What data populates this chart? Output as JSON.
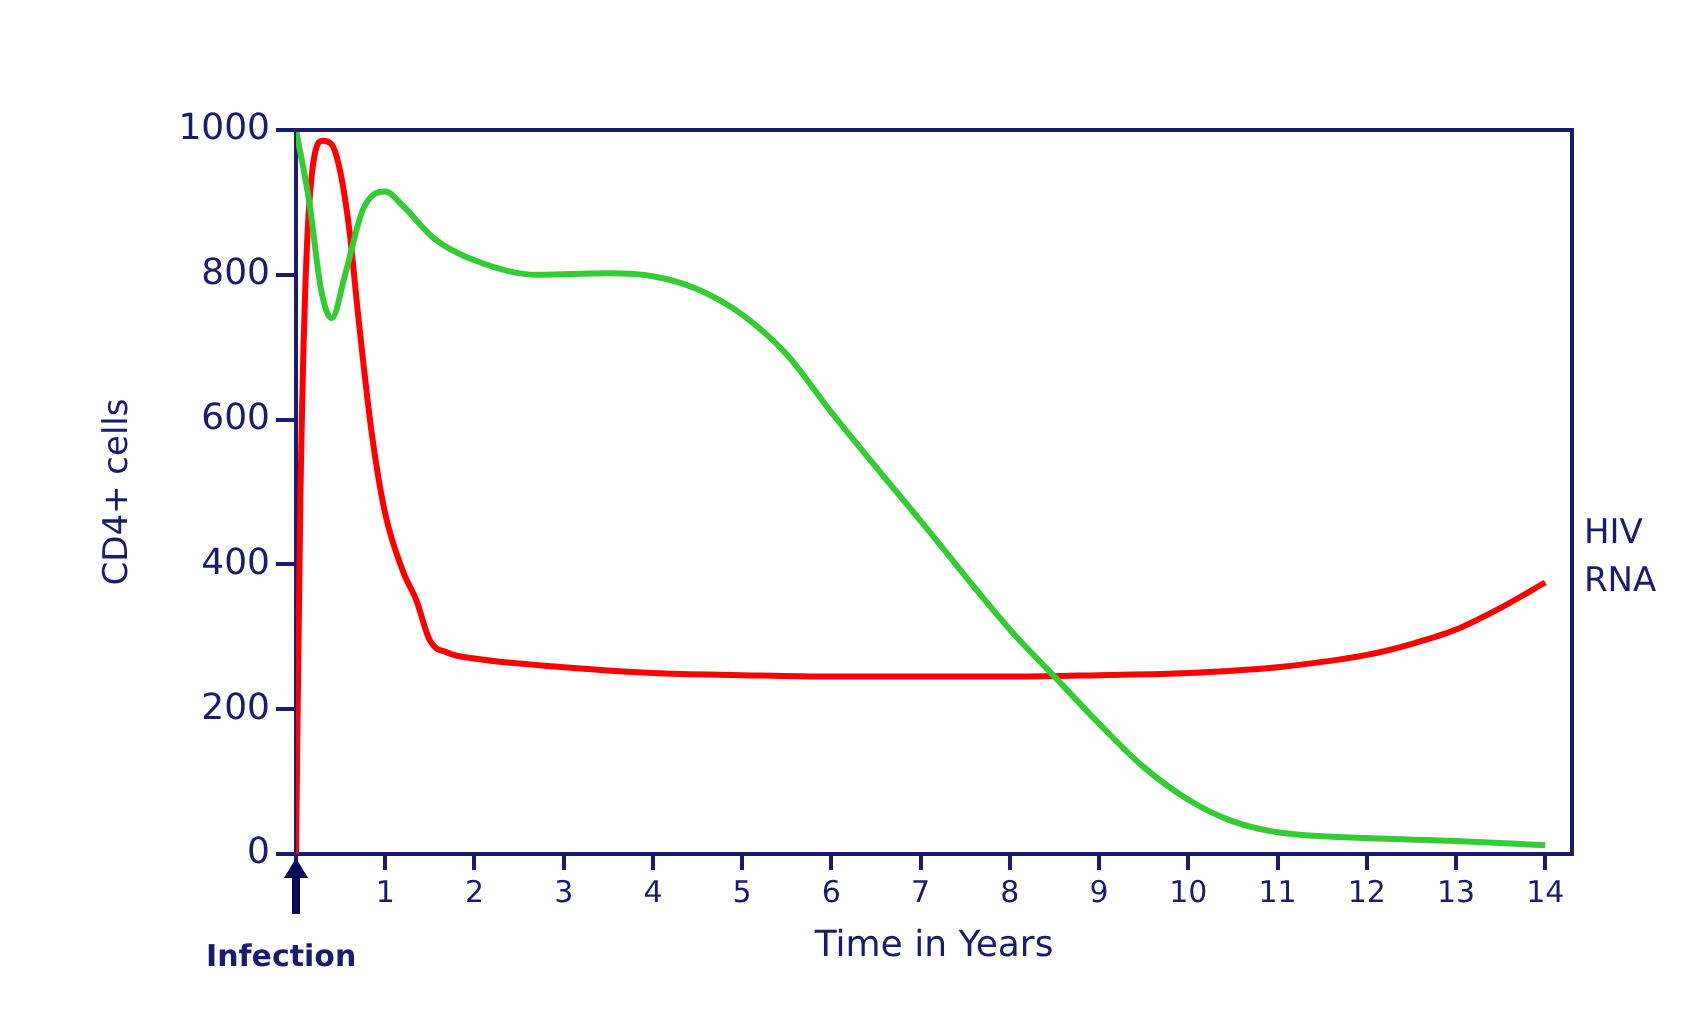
{
  "chart_data": {
    "type": "line",
    "ylabel": "CD4+ cells",
    "xlabel": "Time in Years",
    "xlim": [
      0,
      14.3
    ],
    "xticks": [
      {
        "value": 0,
        "label": null
      },
      1,
      2,
      3,
      4,
      5,
      6,
      7,
      8,
      9,
      10,
      11,
      12,
      13,
      14
    ],
    "ylim": [
      0,
      1000
    ],
    "yticks": [
      0,
      200,
      400,
      600,
      800,
      1000
    ],
    "grid": false,
    "legend": false,
    "marker": "none",
    "line_style": "solid",
    "annotations": [
      "Infection"
    ],
    "series": [
      {
        "color": "#33cc33",
        "x": [
          0,
          0.15,
          0.28,
          0.4,
          0.55,
          0.75,
          1.0,
          1.2,
          1.55,
          2.0,
          2.7,
          3.5,
          4.0,
          4.5,
          5.0,
          5.5,
          6.0,
          7.0,
          8.0,
          8.5,
          9.0,
          9.5,
          10.0,
          10.5,
          11.0,
          12.0,
          13.0,
          14.0
        ],
        "values": [
          1000,
          900,
          780,
          740,
          800,
          890,
          915,
          895,
          850,
          820,
          800,
          802,
          798,
          780,
          745,
          690,
          610,
          460,
          310,
          245,
          180,
          120,
          75,
          45,
          30,
          22,
          18,
          12
        ]
      },
      {
        "name": "HIV RNA",
        "color": "#ff0000",
        "x": [
          0,
          0.05,
          0.15,
          0.3,
          0.4,
          0.5,
          0.6,
          0.7,
          0.85,
          1.0,
          1.2,
          1.35,
          1.5,
          1.7,
          2.0,
          3.0,
          4.0,
          5.0,
          6.0,
          7.0,
          8.0,
          9.0,
          10.0,
          11.0,
          12.0,
          12.5,
          13.0,
          13.5,
          14.0
        ],
        "values": [
          0,
          500,
          900,
          985,
          980,
          940,
          860,
          740,
          580,
          470,
          390,
          350,
          295,
          278,
          270,
          258,
          250,
          247,
          245,
          245,
          245,
          247,
          250,
          258,
          275,
          290,
          310,
          340,
          375
        ]
      }
    ]
  }
}
